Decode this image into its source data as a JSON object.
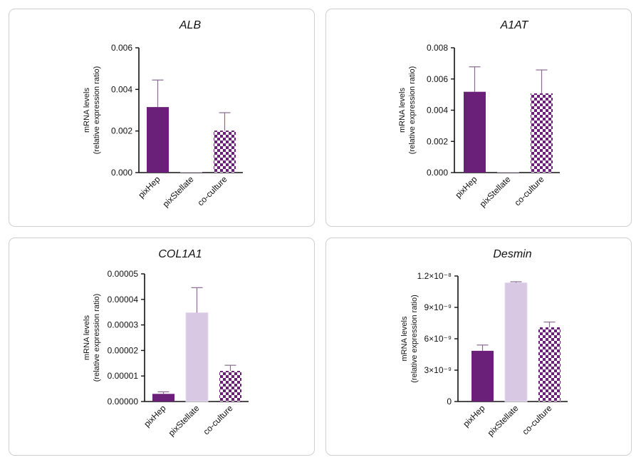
{
  "colors": {
    "pixHep": "#6a1f78",
    "pixStellate": "#d8c8e3",
    "coculture_dark": "#6a1f78",
    "coculture_light": "#ffffff",
    "error": "#8a6a93",
    "axis": "#111111"
  },
  "y_axis_label": [
    "mRNA levels",
    "(relative expression ratio)"
  ],
  "chart_data": [
    {
      "type": "bar",
      "title": "ALB",
      "categories": [
        "pixHep",
        "pixStellate",
        "co-culture"
      ],
      "values": [
        0.00315,
        0.0,
        0.00202
      ],
      "errors": [
        0.0013,
        0.0,
        0.00086
      ],
      "ylim": [
        0,
        0.006
      ],
      "ticks": [
        0,
        0.002,
        0.004,
        0.006
      ],
      "tick_labels": [
        "0.000",
        "0.002",
        "0.004",
        "0.006"
      ],
      "ylabel": "mRNA levels (relative expression ratio)"
    },
    {
      "type": "bar",
      "title": "A1AT",
      "categories": [
        "pixHep",
        "pixStellate",
        "co-culture"
      ],
      "values": [
        0.00518,
        0.0,
        0.00508
      ],
      "errors": [
        0.0016,
        0.0,
        0.0015
      ],
      "ylim": [
        0,
        0.008
      ],
      "ticks": [
        0,
        0.002,
        0.004,
        0.006,
        0.008
      ],
      "tick_labels": [
        "0.000",
        "0.002",
        "0.004",
        "0.006",
        "0.008"
      ],
      "ylabel": "mRNA levels (relative expression ratio)"
    },
    {
      "type": "bar",
      "title": "COL1A1",
      "categories": [
        "pixHep",
        "pixStellate",
        "co-culture"
      ],
      "values": [
        3e-06,
        3.48e-05,
        1.2e-05
      ],
      "errors": [
        8e-07,
        9.8e-06,
        2.2e-06
      ],
      "ylim": [
        0,
        5e-05
      ],
      "ticks": [
        0,
        1e-05,
        2e-05,
        3e-05,
        4e-05,
        5e-05
      ],
      "tick_labels": [
        "0.00000",
        "0.00001",
        "0.00002",
        "0.00003",
        "0.00004",
        "0.00005"
      ],
      "ylabel": "mRNA levels (relative expression ratio)"
    },
    {
      "type": "bar",
      "title": "Desmin",
      "categories": [
        "pixHep",
        "pixStellate",
        "co-culture"
      ],
      "values": [
        4.85e-09,
        1.135e-08,
        7.1e-09
      ],
      "errors": [
        5.5e-10,
        1e-10,
        5e-10
      ],
      "ylim": [
        0,
        1.2e-08
      ],
      "ticks": [
        0,
        3e-09,
        6e-09,
        9e-09,
        1.2e-08
      ],
      "tick_labels": [
        "0",
        "3×10⁻⁹",
        "6×10⁻⁹",
        "9×10⁻⁹",
        "1.2×10⁻⁸"
      ],
      "ylabel": "mRNA levels (relative expression ratio)"
    }
  ]
}
